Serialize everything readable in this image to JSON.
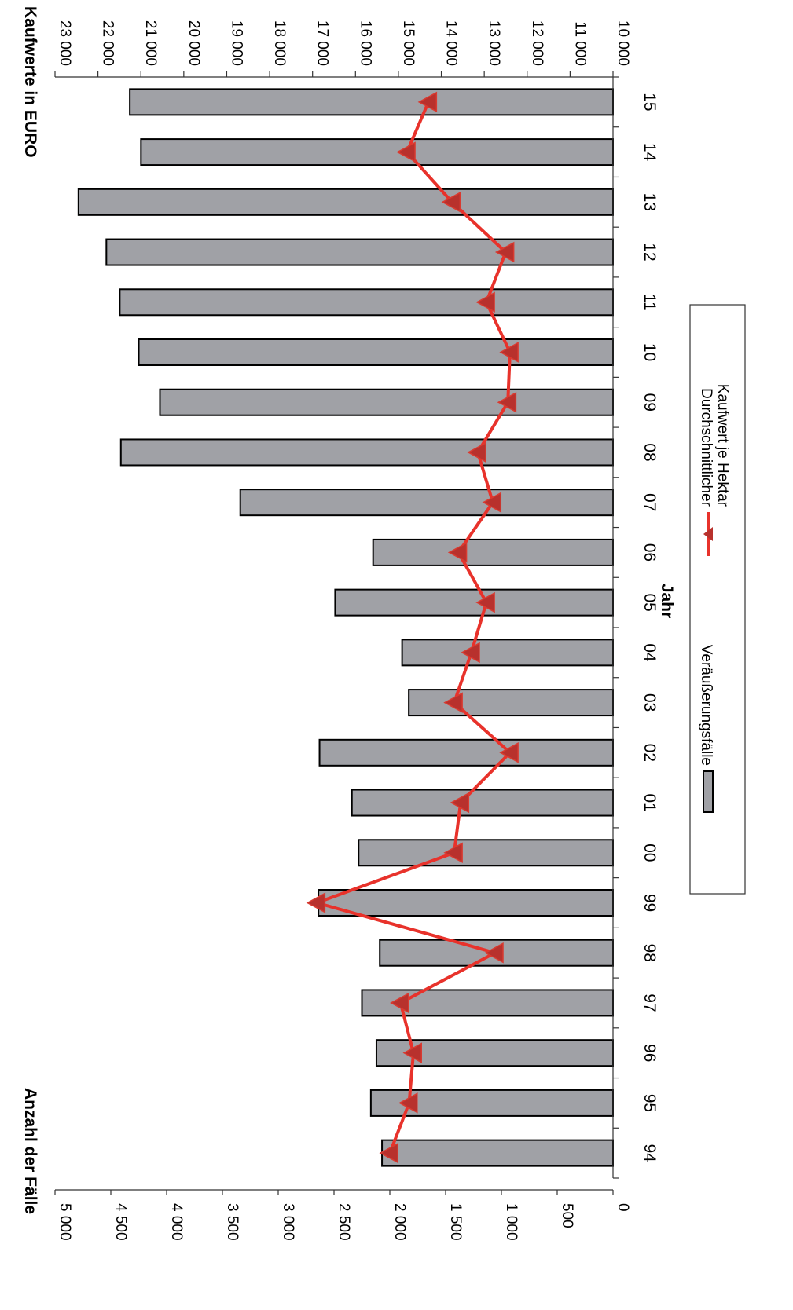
{
  "chart_data": {
    "type": "bar",
    "orientation": "rotated-90-clockwise",
    "categories": [
      "94",
      "95",
      "96",
      "97",
      "98",
      "99",
      "00",
      "01",
      "02",
      "03",
      "04",
      "05",
      "06",
      "07",
      "08",
      "09",
      "10",
      "11",
      "12",
      "13",
      "14",
      "15"
    ],
    "xlabel": "Jahr",
    "y_left": {
      "label": "Anzahl der Fälle",
      "range": [
        0,
        5000
      ],
      "ticks": [
        "0",
        "500",
        "1 000",
        "1 500",
        "2 000",
        "2 500",
        "3 000",
        "3 500",
        "4 000",
        "4 500",
        "5 000"
      ]
    },
    "y_right": {
      "label": "Kaufwerte in EURO",
      "range": [
        10000,
        23000
      ],
      "ticks": [
        "10 000",
        "11 000",
        "12 000",
        "13 000",
        "14 000",
        "15 000",
        "16 000",
        "17 000",
        "18 000",
        "19 000",
        "20 000",
        "21 000",
        "22 000",
        "23 000"
      ]
    },
    "grid": false,
    "series": [
      {
        "name": "Veräußerungsfälle",
        "type": "bar",
        "axis": "left",
        "color": "#a0a1a6",
        "values": [
          2070,
          2170,
          2120,
          2250,
          2090,
          2640,
          2280,
          2340,
          2630,
          1830,
          1890,
          2490,
          2150,
          3340,
          4410,
          4060,
          4250,
          4420,
          4540,
          4790,
          4230,
          4330
        ]
      },
      {
        "name": "Durchschnittlicher Kaufwert je Hektar",
        "type": "line",
        "axis": "right",
        "color": "#e8322b",
        "values": [
          15200,
          14750,
          14650,
          14950,
          12750,
          16900,
          13700,
          13550,
          12400,
          13700,
          13300,
          12950,
          13600,
          12800,
          13150,
          12450,
          12400,
          12950,
          12500,
          13750,
          14800,
          14300
        ]
      }
    ],
    "legend": {
      "position": "bottom-right",
      "items": [
        "Veräußerungsfälle",
        "Durchschnittlicher Kaufwert je Hektar"
      ]
    }
  }
}
